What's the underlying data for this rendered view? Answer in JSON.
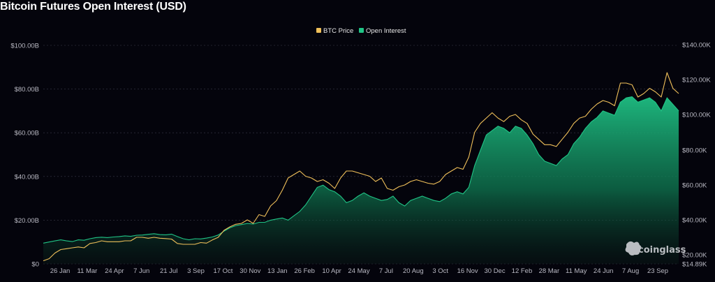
{
  "chart_data": {
    "type": "line",
    "title": "Bitcoin Futures Open Interest (USD)",
    "watermark": "coinglass",
    "legend_position": "top-center",
    "grid": true,
    "x_labels": [
      "26 Jan",
      "11 Mar",
      "24 Apr",
      "7 Jun",
      "21 Jul",
      "3 Sep",
      "17 Oct",
      "30 Nov",
      "13 Jan",
      "26 Feb",
      "10 Apr",
      "24 May",
      "7 Jul",
      "20 Aug",
      "3 Oct",
      "16 Nov",
      "30 Dec",
      "12 Feb",
      "28 Mar",
      "11 May",
      "24 Jun",
      "7 Aug",
      "23 Sep"
    ],
    "left_axis": {
      "ticks": [
        "$0",
        "$20.00B",
        "$40.00B",
        "$60.00B",
        "$80.00B",
        "$100.00B"
      ],
      "ylim": [
        0,
        100
      ]
    },
    "right_axis": {
      "ticks": [
        "$14.89K",
        "$20.00K",
        "$40.00K",
        "$60.00K",
        "$80.00K",
        "$100.00K",
        "$120.00K",
        "$140.00K"
      ],
      "ylim": [
        14.89,
        140
      ]
    },
    "series": [
      {
        "name": "Open Interest",
        "color": "#20c486",
        "axis": "left",
        "unit": "B USD",
        "values": [
          9.5,
          10,
          10.5,
          11,
          10.5,
          10.2,
          11,
          10.8,
          11.5,
          12,
          12.2,
          12,
          12.3,
          12.5,
          12.8,
          12.6,
          13.1,
          13.2,
          13.5,
          13.8,
          13.4,
          13.3,
          13.6,
          12.5,
          11.5,
          11,
          11.5,
          11.4,
          11.8,
          12.3,
          13.2,
          15,
          16.5,
          17.5,
          18,
          18.5,
          18.2,
          19,
          19,
          20,
          20.5,
          21,
          20,
          22,
          24,
          27,
          31,
          35,
          36,
          34,
          33,
          31,
          28,
          29,
          31,
          32.5,
          31,
          30,
          29,
          29.5,
          31,
          28,
          26.5,
          29,
          30,
          31,
          30,
          29,
          28.5,
          30,
          32,
          33,
          32,
          35,
          45,
          52,
          59,
          61,
          63,
          62,
          60,
          63,
          62,
          59,
          55,
          50,
          47,
          46,
          45,
          48,
          50,
          55,
          58,
          62,
          65,
          67,
          70,
          69,
          68,
          74,
          76,
          76.5,
          74,
          75,
          76,
          74,
          70,
          76,
          73,
          70
        ]
      },
      {
        "name": "BTC Price",
        "color": "#f0c05a",
        "axis": "right",
        "unit": "K USD",
        "values": [
          16.6,
          17.8,
          21,
          23,
          23.5,
          24,
          24.5,
          24,
          26.5,
          27,
          28,
          27.5,
          27.5,
          27.5,
          28,
          28,
          30,
          30,
          29.5,
          30,
          29.5,
          29.3,
          29,
          26.5,
          26,
          26,
          26,
          27,
          26.7,
          28.5,
          30,
          34,
          36,
          37.5,
          38,
          40,
          38,
          43,
          42,
          48,
          51,
          57,
          64,
          66,
          68,
          65,
          64,
          62,
          63,
          61,
          58,
          64,
          68,
          68,
          67,
          66,
          65,
          62,
          64,
          58,
          57,
          59,
          60,
          62,
          63,
          62,
          61,
          60.5,
          62,
          66,
          68,
          70,
          69,
          76,
          90,
          95,
          98,
          101,
          98,
          96,
          99,
          100,
          97,
          95,
          89,
          86,
          83,
          83,
          82,
          86,
          90,
          95,
          98,
          99,
          103,
          106,
          108,
          107,
          105,
          118,
          118,
          117,
          110,
          112,
          115,
          113,
          110,
          124,
          115,
          112
        ]
      }
    ]
  }
}
